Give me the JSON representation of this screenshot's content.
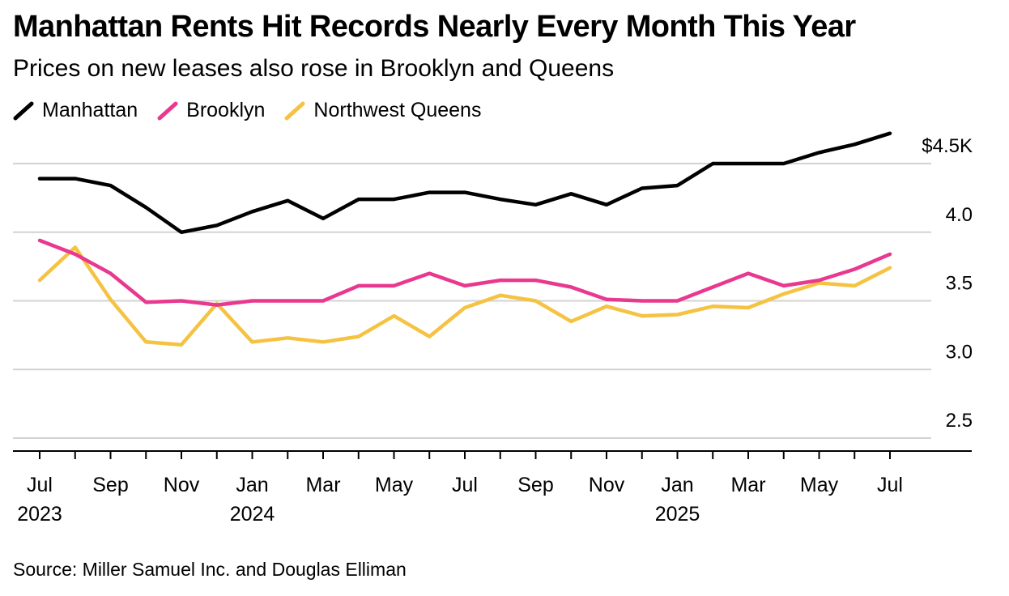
{
  "title": "Manhattan Rents Hit Records Nearly Every Month This Year",
  "subtitle": "Prices on new leases also rose in Brooklyn and Queens",
  "source": "Source: Miller Samuel Inc. and Douglas Elliman",
  "legend": [
    {
      "label": "Manhattan",
      "color": "#000000"
    },
    {
      "label": "Brooklyn",
      "color": "#e8388f"
    },
    {
      "label": "Northwest Queens",
      "color": "#f5c242"
    }
  ],
  "chart_data": {
    "type": "line",
    "title": "Manhattan Rents Hit Records Nearly Every Month This Year",
    "subtitle": "Prices on new leases also rose in Brooklyn and Queens",
    "y_axis_position": "right",
    "ylim": [
      2.5,
      4.6
    ],
    "y_ticks": [
      {
        "value": 2.5,
        "label": "2.5"
      },
      {
        "value": 3.0,
        "label": "3.0"
      },
      {
        "value": 3.5,
        "label": "3.5"
      },
      {
        "value": 4.0,
        "label": "4.0"
      },
      {
        "value": 4.5,
        "label": "$4.5K"
      }
    ],
    "grid": true,
    "legend_placement": "top-left",
    "x": [
      "2023-07",
      "2023-08",
      "2023-09",
      "2023-10",
      "2023-11",
      "2023-12",
      "2024-01",
      "2024-02",
      "2024-03",
      "2024-04",
      "2024-05",
      "2024-06",
      "2024-07",
      "2024-08",
      "2024-09",
      "2024-10",
      "2024-11",
      "2024-12",
      "2025-01",
      "2025-02",
      "2025-03",
      "2025-04",
      "2025-05",
      "2025-06",
      "2025-07"
    ],
    "x_tick_labels": [
      {
        "x": "2023-07",
        "month": "Jul",
        "year": "2023"
      },
      {
        "x": "2023-09",
        "month": "Sep",
        "year": ""
      },
      {
        "x": "2023-11",
        "month": "Nov",
        "year": ""
      },
      {
        "x": "2024-01",
        "month": "Jan",
        "year": "2024"
      },
      {
        "x": "2024-03",
        "month": "Mar",
        "year": ""
      },
      {
        "x": "2024-05",
        "month": "May",
        "year": ""
      },
      {
        "x": "2024-07",
        "month": "Jul",
        "year": ""
      },
      {
        "x": "2024-09",
        "month": "Sep",
        "year": ""
      },
      {
        "x": "2024-11",
        "month": "Nov",
        "year": ""
      },
      {
        "x": "2025-01",
        "month": "Jan",
        "year": "2025"
      },
      {
        "x": "2025-03",
        "month": "Mar",
        "year": ""
      },
      {
        "x": "2025-05",
        "month": "May",
        "year": ""
      },
      {
        "x": "2025-07",
        "month": "Jul",
        "year": ""
      }
    ],
    "series": [
      {
        "name": "Manhattan",
        "color": "#000000",
        "values": [
          4.39,
          4.39,
          4.34,
          4.18,
          4.0,
          4.05,
          4.15,
          4.23,
          4.1,
          4.24,
          4.24,
          4.29,
          4.29,
          4.24,
          4.2,
          4.28,
          4.2,
          4.32,
          4.34,
          4.5,
          4.5,
          4.5,
          4.58,
          4.64,
          4.72
        ]
      },
      {
        "name": "Brooklyn",
        "color": "#e8388f",
        "values": [
          3.94,
          3.84,
          3.7,
          3.49,
          3.5,
          3.47,
          3.5,
          3.5,
          3.5,
          3.61,
          3.61,
          3.7,
          3.61,
          3.65,
          3.65,
          3.6,
          3.51,
          3.5,
          3.5,
          3.6,
          3.7,
          3.61,
          3.65,
          3.73,
          3.84
        ]
      },
      {
        "name": "Northwest Queens",
        "color": "#f5c242",
        "values": [
          3.65,
          3.89,
          3.51,
          3.2,
          3.18,
          3.48,
          3.2,
          3.23,
          3.2,
          3.24,
          3.39,
          3.24,
          3.45,
          3.54,
          3.5,
          3.35,
          3.46,
          3.39,
          3.4,
          3.46,
          3.45,
          3.55,
          3.63,
          3.61,
          3.74
        ]
      }
    ]
  }
}
